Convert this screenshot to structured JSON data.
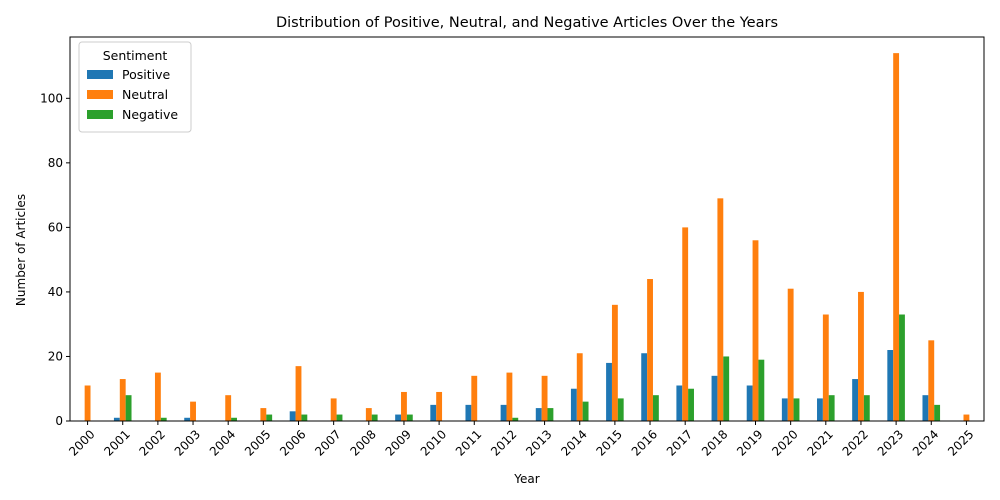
{
  "chart_data": {
    "type": "bar",
    "title": "Distribution of Positive, Neutral, and Negative Articles Over the Years",
    "xlabel": "Year",
    "ylabel": "Number of Articles",
    "ylim": [
      0,
      119
    ],
    "yticks": [
      0,
      20,
      40,
      60,
      80,
      100
    ],
    "grid": false,
    "legend": {
      "title": "Sentiment",
      "placement": "top-left"
    },
    "categories": [
      "2000",
      "2001",
      "2002",
      "2003",
      "2004",
      "2005",
      "2006",
      "2007",
      "2008",
      "2009",
      "2010",
      "2011",
      "2012",
      "2013",
      "2014",
      "2015",
      "2016",
      "2017",
      "2018",
      "2019",
      "2020",
      "2021",
      "2022",
      "2023",
      "2024",
      "2025"
    ],
    "series": [
      {
        "name": "Positive",
        "color": "#1f77b4",
        "values": [
          0,
          1,
          0,
          1,
          0,
          0,
          3,
          0,
          0,
          2,
          5,
          5,
          5,
          4,
          10,
          18,
          21,
          11,
          14,
          11,
          7,
          7,
          13,
          22,
          8,
          0
        ]
      },
      {
        "name": "Neutral",
        "color": "#ff7f0e",
        "values": [
          11,
          13,
          15,
          6,
          8,
          4,
          17,
          7,
          4,
          9,
          9,
          14,
          15,
          14,
          21,
          36,
          44,
          60,
          69,
          56,
          41,
          33,
          40,
          114,
          25,
          2
        ]
      },
      {
        "name": "Negative",
        "color": "#2ca02c",
        "values": [
          0,
          8,
          1,
          0,
          1,
          2,
          2,
          2,
          2,
          2,
          0,
          0,
          1,
          4,
          6,
          7,
          8,
          10,
          20,
          19,
          7,
          8,
          8,
          33,
          5,
          0
        ]
      }
    ]
  }
}
